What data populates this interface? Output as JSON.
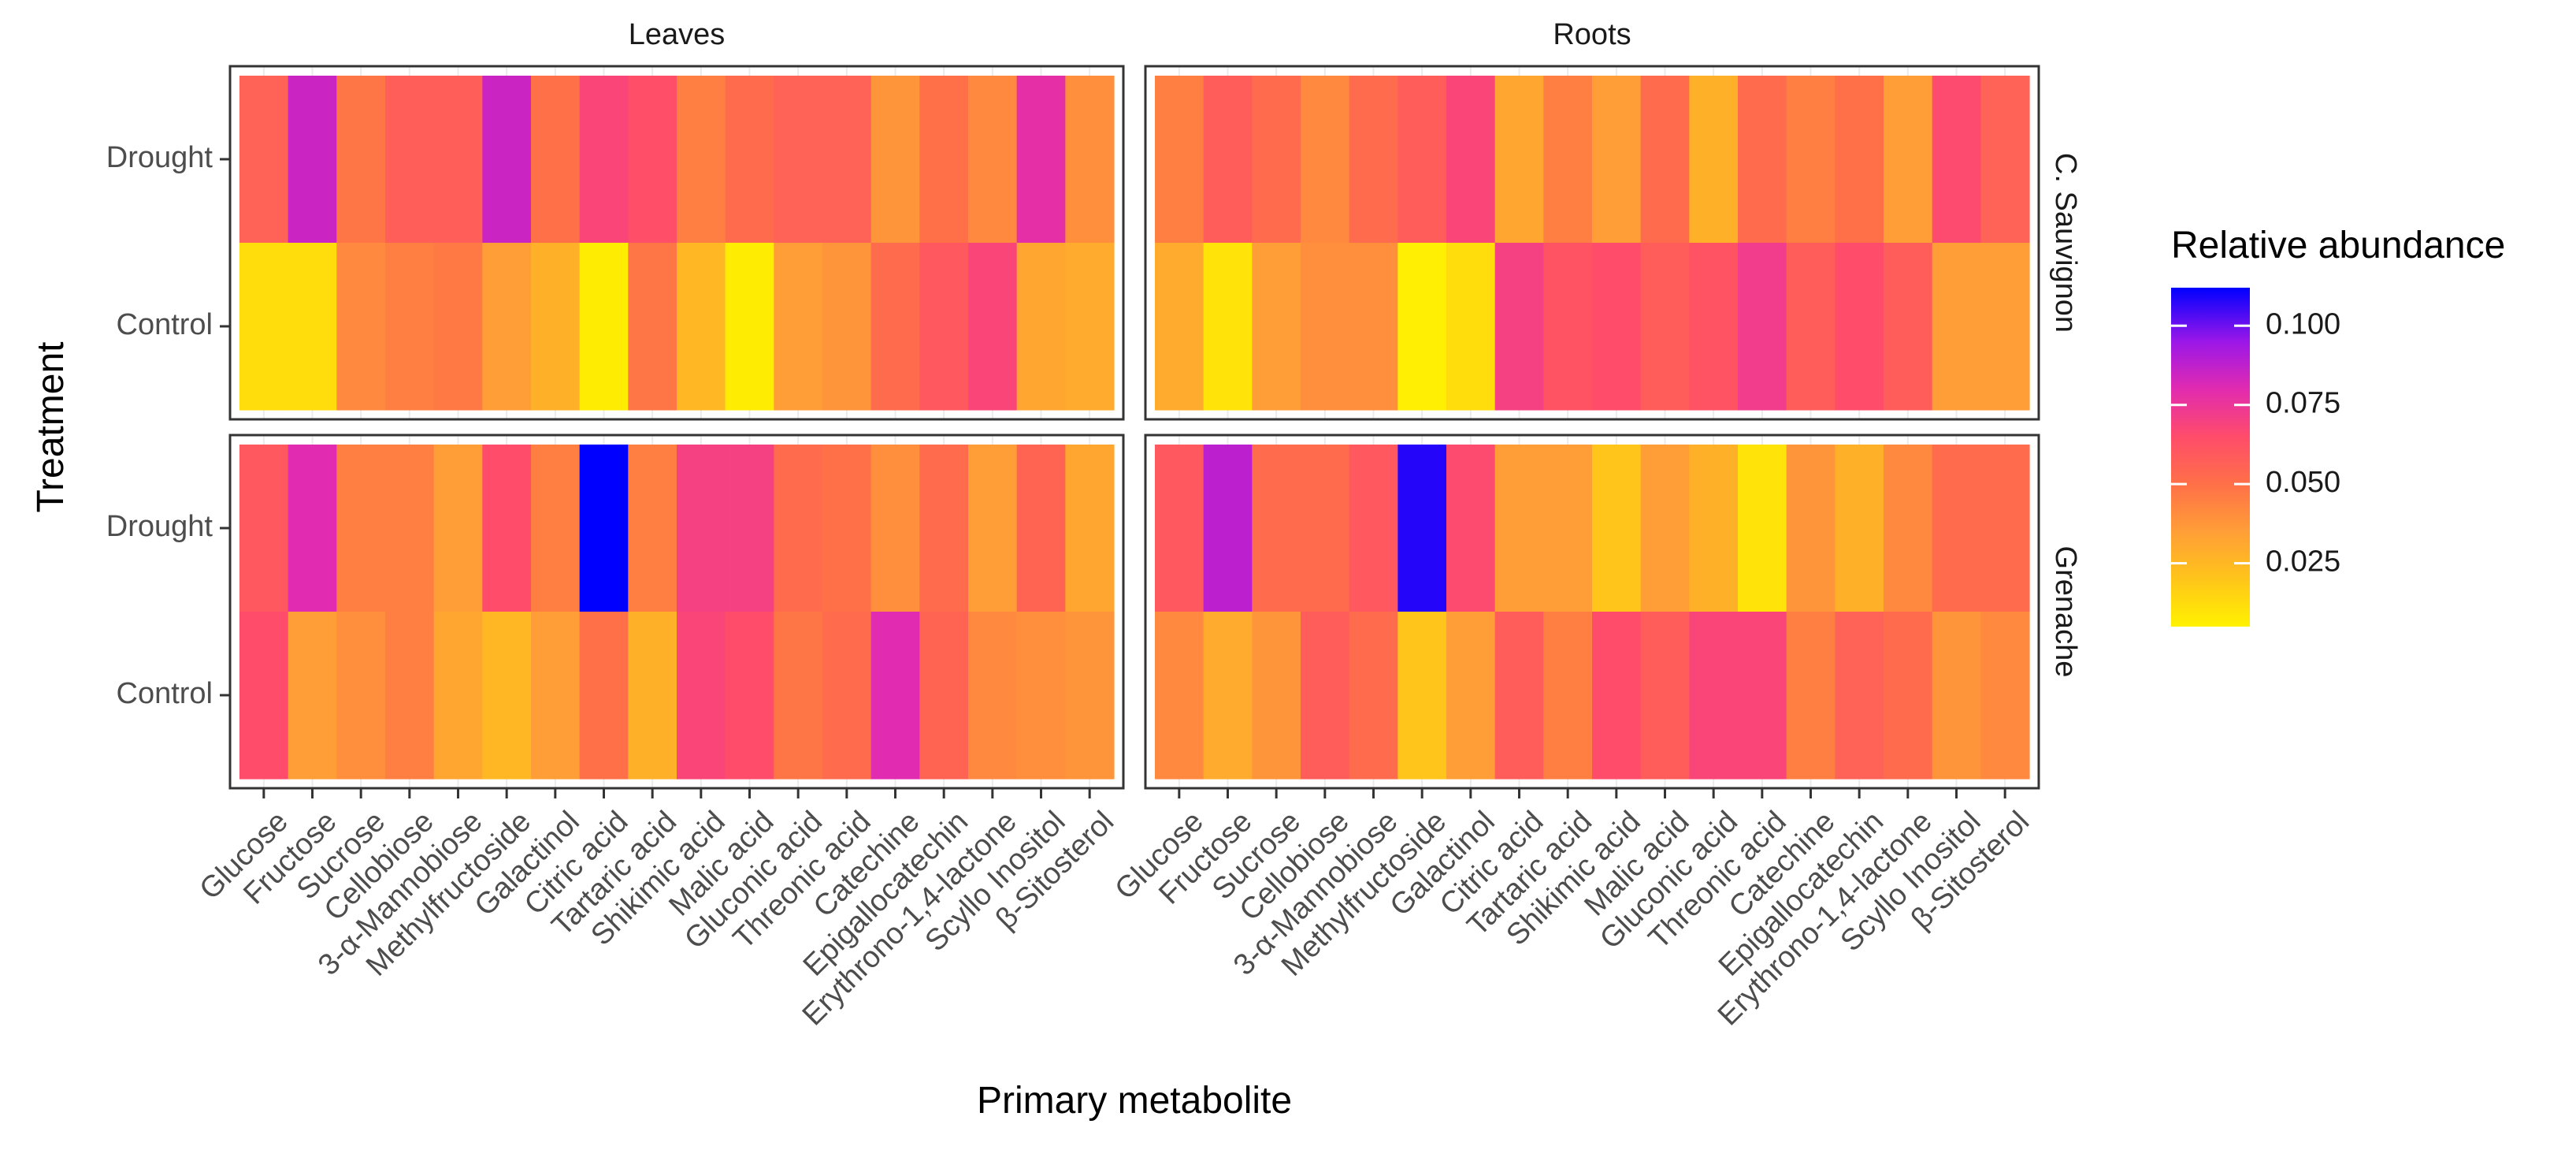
{
  "chart_data": {
    "type": "heatmap",
    "xlabel": "Primary metabolite",
    "ylabel": "Treatment",
    "legend": {
      "title": "Relative abundance",
      "placement": "right",
      "min": 0.005,
      "max": 0.112,
      "ticks": [
        0.025,
        0.05,
        0.075,
        0.1
      ],
      "tick_labels": [
        "0.025",
        "0.050",
        "0.075",
        "0.100"
      ]
    },
    "colorscale": {
      "colors": [
        "#fff200",
        "#ffc51a",
        "#ff9e37",
        "#ff7048",
        "#ff4c6a",
        "#e12bb0",
        "#9b17e8",
        "#0000ff"
      ],
      "domain": [
        0.005,
        0.02,
        0.035,
        0.05,
        0.065,
        0.08,
        0.095,
        0.112
      ]
    },
    "columns": [
      "Leaves",
      "Roots"
    ],
    "rows": [
      "C. Sauvignon",
      "Grenache"
    ],
    "treatments": [
      "Drought",
      "Control"
    ],
    "metabolites": [
      "Glucose",
      "Fructose",
      "Sucrose",
      "Cellobiose",
      "3-α-Mannobiose",
      "Methylfructoside",
      "Galactinol",
      "Citric acid",
      "Tartaric acid",
      "Shikimic acid",
      "Malic acid",
      "Gluconic acid",
      "Threonic acid",
      "Catechine",
      "Epigallocatechin",
      "Erythrono-1,4-lactone",
      "Scyllo Inositol",
      "β-Sitosterol"
    ],
    "panels": [
      {
        "column": "Leaves",
        "row": "C. Sauvignon",
        "values": {
          "Drought": [
            0.056,
            0.085,
            0.048,
            0.057,
            0.057,
            0.085,
            0.05,
            0.068,
            0.064,
            0.045,
            0.052,
            0.056,
            0.056,
            0.038,
            0.05,
            0.042,
            0.078,
            0.04
          ],
          "Control": [
            0.012,
            0.012,
            0.042,
            0.045,
            0.047,
            0.035,
            0.028,
            0.007,
            0.048,
            0.025,
            0.007,
            0.035,
            0.038,
            0.052,
            0.06,
            0.068,
            0.032,
            0.03
          ]
        }
      },
      {
        "column": "Roots",
        "row": "C. Sauvignon",
        "values": {
          "Drought": [
            0.045,
            0.058,
            0.052,
            0.042,
            0.052,
            0.058,
            0.068,
            0.032,
            0.045,
            0.035,
            0.052,
            0.028,
            0.052,
            0.045,
            0.05,
            0.035,
            0.066,
            0.056
          ],
          "Control": [
            0.03,
            0.01,
            0.035,
            0.04,
            0.04,
            0.006,
            0.012,
            0.07,
            0.062,
            0.065,
            0.058,
            0.062,
            0.072,
            0.058,
            0.065,
            0.058,
            0.035,
            0.035
          ]
        }
      },
      {
        "column": "Leaves",
        "row": "Grenache",
        "values": {
          "Drought": [
            0.06,
            0.08,
            0.045,
            0.045,
            0.035,
            0.065,
            0.045,
            0.112,
            0.045,
            0.07,
            0.07,
            0.052,
            0.05,
            0.04,
            0.052,
            0.035,
            0.055,
            0.032
          ],
          "Control": [
            0.065,
            0.035,
            0.04,
            0.045,
            0.032,
            0.025,
            0.035,
            0.05,
            0.028,
            0.068,
            0.065,
            0.048,
            0.052,
            0.08,
            0.055,
            0.042,
            0.04,
            0.038
          ]
        }
      },
      {
        "column": "Roots",
        "row": "Grenache",
        "values": {
          "Drought": [
            0.06,
            0.088,
            0.052,
            0.052,
            0.06,
            0.108,
            0.066,
            0.035,
            0.035,
            0.02,
            0.035,
            0.028,
            0.01,
            0.038,
            0.028,
            0.042,
            0.052,
            0.052
          ],
          "Control": [
            0.042,
            0.03,
            0.038,
            0.058,
            0.052,
            0.02,
            0.035,
            0.058,
            0.045,
            0.065,
            0.058,
            0.068,
            0.068,
            0.045,
            0.056,
            0.052,
            0.038,
            0.042
          ]
        }
      }
    ]
  }
}
